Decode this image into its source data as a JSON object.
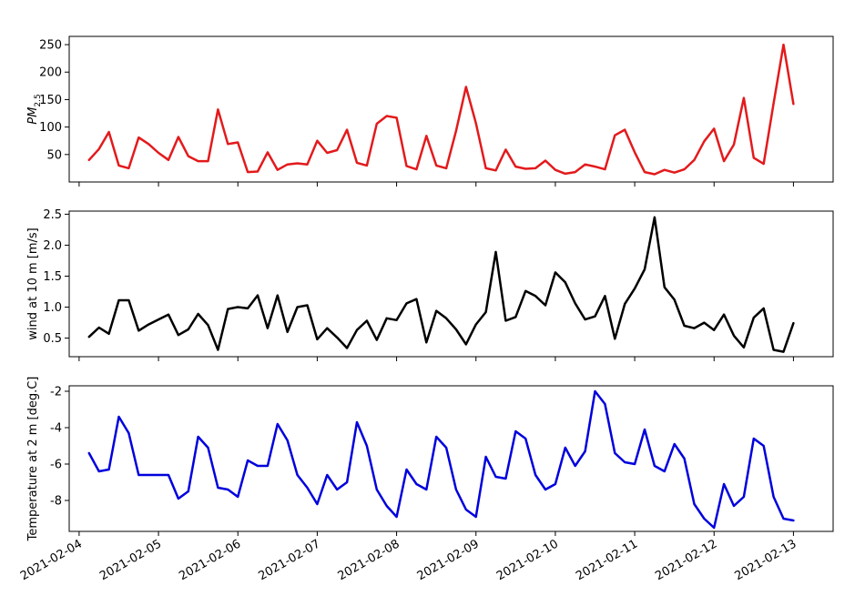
{
  "chart_data": [
    {
      "type": "line",
      "ylabel": "PM2.5",
      "ylabel_main": "PM",
      "ylabel_sub": "2.5",
      "ylim": [
        0,
        265
      ],
      "yticks": [
        50,
        100,
        150,
        200,
        250
      ],
      "color": "#e31a1c",
      "values": [
        40,
        60,
        91,
        30,
        25,
        81,
        69,
        53,
        40,
        82,
        47,
        38,
        38,
        132,
        69,
        72,
        18,
        19,
        54,
        22,
        32,
        34,
        32,
        75,
        53,
        58,
        95,
        35,
        30,
        106,
        120,
        117,
        29,
        23,
        84,
        30,
        25,
        93,
        173,
        107,
        25,
        21,
        59,
        28,
        24,
        25,
        39,
        22,
        15,
        18,
        32,
        28,
        23,
        85,
        95,
        54,
        18,
        14,
        22,
        17,
        23,
        40,
        74,
        97,
        38,
        68,
        153,
        44,
        33,
        143,
        250,
        142
      ],
      "x_start": "2021-02-04 03:00",
      "x_step_hours": 3
    },
    {
      "type": "line",
      "ylabel": "wind at 10 m [m/s]",
      "ylim": [
        0.2,
        2.55
      ],
      "yticks": [
        0.5,
        1.0,
        1.5,
        2.0,
        2.5
      ],
      "color": "#000000",
      "values": [
        0.52,
        0.67,
        0.57,
        1.11,
        1.11,
        0.62,
        0.72,
        0.8,
        0.88,
        0.55,
        0.64,
        0.89,
        0.71,
        0.31,
        0.97,
        1.0,
        0.98,
        1.19,
        0.66,
        1.19,
        0.6,
        1.0,
        1.03,
        0.48,
        0.66,
        0.51,
        0.34,
        0.63,
        0.78,
        0.47,
        0.82,
        0.79,
        1.06,
        1.13,
        0.43,
        0.94,
        0.82,
        0.64,
        0.4,
        0.72,
        0.92,
        1.89,
        0.78,
        0.84,
        1.26,
        1.18,
        1.03,
        1.56,
        1.4,
        1.06,
        0.8,
        0.85,
        1.18,
        0.49,
        1.05,
        1.3,
        1.61,
        2.45,
        1.32,
        1.12,
        0.7,
        0.66,
        0.75,
        0.63,
        0.88,
        0.54,
        0.35,
        0.83,
        0.98,
        0.31,
        0.28,
        0.74
      ],
      "x_start": "2021-02-04 03:00",
      "x_step_hours": 3
    },
    {
      "type": "line",
      "ylabel": "Temperature at 2 m [deg.C]",
      "ylim": [
        -9.7,
        -1.7
      ],
      "yticks": [
        -8,
        -6,
        -4,
        -2
      ],
      "color": "#0000dd",
      "values": [
        -5.4,
        -6.4,
        -6.3,
        -3.4,
        -4.3,
        -6.6,
        -6.6,
        -6.6,
        -6.6,
        -7.9,
        -7.5,
        -4.5,
        -5.1,
        -7.3,
        -7.4,
        -7.8,
        -5.8,
        -6.1,
        -6.1,
        -3.8,
        -4.7,
        -6.6,
        -7.3,
        -8.2,
        -6.6,
        -7.4,
        -7.0,
        -3.7,
        -5.0,
        -7.4,
        -8.3,
        -8.9,
        -6.3,
        -7.1,
        -7.4,
        -4.5,
        -5.1,
        -7.4,
        -8.5,
        -8.9,
        -5.6,
        -6.7,
        -6.8,
        -4.2,
        -4.6,
        -6.6,
        -7.4,
        -7.1,
        -5.1,
        -6.1,
        -5.3,
        -2.0,
        -2.7,
        -5.4,
        -5.9,
        -6.0,
        -4.1,
        -6.1,
        -6.4,
        -4.9,
        -5.7,
        -8.2,
        -9.0,
        -9.5,
        -7.1,
        -8.3,
        -7.8,
        -4.6,
        -5.0,
        -7.8,
        -9.0,
        -9.1
      ],
      "x_start": "2021-02-04 03:00",
      "x_step_hours": 3
    }
  ],
  "x_axis": {
    "range_days": [
      "2021-02-03 21:00",
      "2021-02-13 12:00"
    ],
    "tick_labels": [
      "2021-02-04",
      "2021-02-05",
      "2021-02-06",
      "2021-02-07",
      "2021-02-08",
      "2021-02-09",
      "2021-02-10",
      "2021-02-11",
      "2021-02-12",
      "2021-02-13"
    ]
  }
}
